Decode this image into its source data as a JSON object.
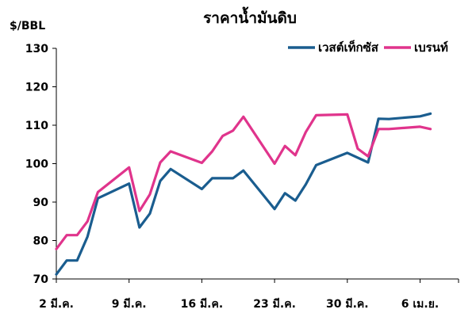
{
  "chart_data": {
    "type": "line",
    "title": "ราคาน้ำมันดิบ",
    "ylabel": "$/BBL",
    "ylim": [
      70,
      130
    ],
    "yticks": [
      "70",
      "80",
      "90",
      "100",
      "110",
      "120",
      "130"
    ],
    "xlabels": [
      "2 มี.ค.",
      "9 มี.ค.",
      "16 มี.ค.",
      "23 มี.ค.",
      "30 มี.ค.",
      "6 เม.ย."
    ],
    "xlabel_index": [
      0,
      7,
      14,
      21,
      28,
      35
    ],
    "n_points": 37,
    "legend_position": "top-right",
    "series": [
      {
        "name": "เวสต์เท็กซัส",
        "color": "#1a5d8f",
        "points": [
          [
            0,
            71.2
          ],
          [
            1,
            74.8
          ],
          [
            2,
            74.8
          ],
          [
            3,
            81.0
          ],
          [
            4,
            91.0
          ],
          [
            7,
            94.8
          ],
          [
            8,
            83.4
          ],
          [
            9,
            87.0
          ],
          [
            10,
            95.5
          ],
          [
            11,
            98.6
          ],
          [
            14,
            93.4
          ],
          [
            15,
            96.2
          ],
          [
            17,
            96.2
          ],
          [
            18,
            98.2
          ],
          [
            21,
            88.2
          ],
          [
            22,
            92.3
          ],
          [
            23,
            90.4
          ],
          [
            24,
            94.6
          ],
          [
            25,
            99.6
          ],
          [
            28,
            102.8
          ],
          [
            30,
            100.3
          ],
          [
            31,
            111.7
          ],
          [
            32,
            111.6
          ],
          [
            35,
            112.3
          ],
          [
            36,
            113.0
          ]
        ]
      },
      {
        "name": "เบรนท์",
        "color": "#e0348c",
        "points": [
          [
            0,
            77.8
          ],
          [
            1,
            81.4
          ],
          [
            2,
            81.4
          ],
          [
            3,
            85.0
          ],
          [
            4,
            92.6
          ],
          [
            7,
            99.0
          ],
          [
            8,
            87.7
          ],
          [
            9,
            92.0
          ],
          [
            10,
            100.3
          ],
          [
            11,
            103.2
          ],
          [
            14,
            100.2
          ],
          [
            15,
            103.2
          ],
          [
            16,
            107.2
          ],
          [
            17,
            108.6
          ],
          [
            18,
            112.2
          ],
          [
            21,
            100.0
          ],
          [
            22,
            104.6
          ],
          [
            23,
            102.2
          ],
          [
            24,
            108.2
          ],
          [
            25,
            112.6
          ],
          [
            28,
            112.8
          ],
          [
            29,
            103.9
          ],
          [
            30,
            101.9
          ],
          [
            31,
            109.0
          ],
          [
            32,
            109.0
          ],
          [
            35,
            109.6
          ],
          [
            36,
            109.0
          ]
        ]
      }
    ]
  }
}
